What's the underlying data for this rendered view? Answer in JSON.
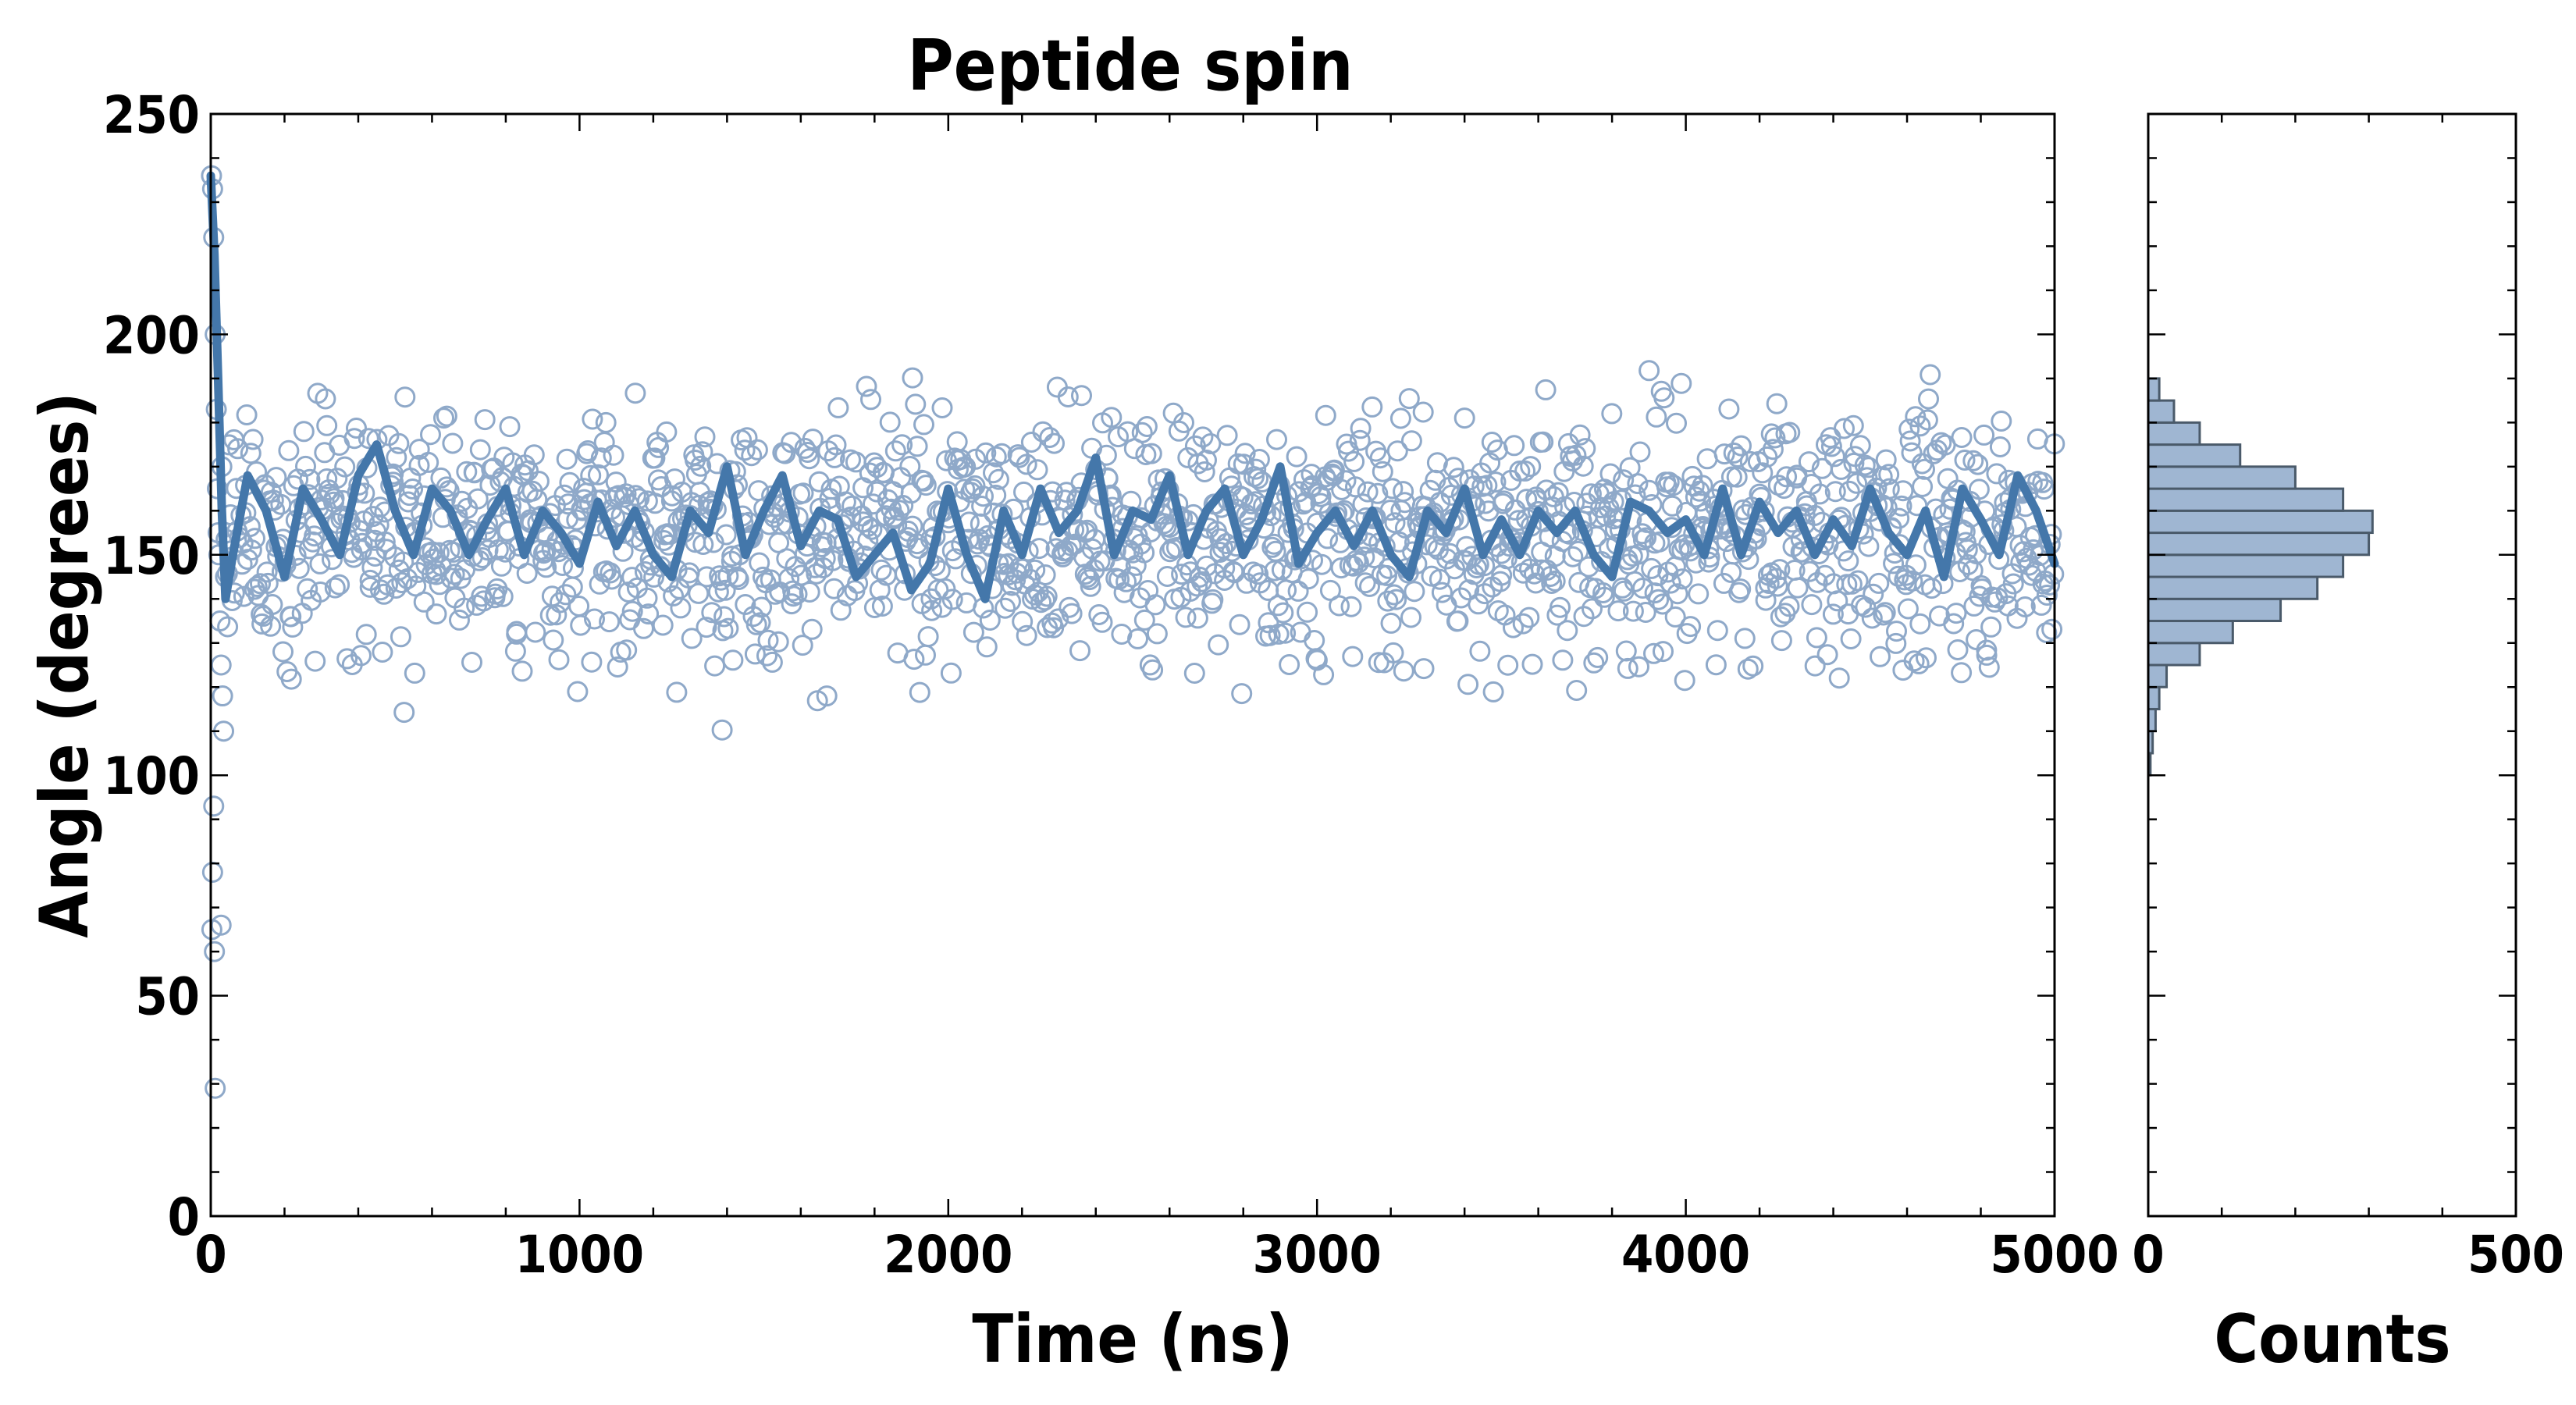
{
  "chart_data": [
    {
      "type": "scatter",
      "title": "Peptide spin",
      "xlabel": "Time (ns)",
      "ylabel": "Angle (degrees)",
      "xlim": [
        0,
        5000
      ],
      "ylim": [
        0,
        250
      ],
      "xticks": [
        "0",
        "1000",
        "2000",
        "3000",
        "4000",
        "5000"
      ],
      "yticks": [
        "0",
        "50",
        "100",
        "150",
        "200",
        "250"
      ],
      "grid": false,
      "series": [
        {
          "style": "hollow-circles",
          "color": "#8fa9c9",
          "description_points": "raw angle samples",
          "early_points": [
            [
              2,
              236
            ],
            [
              5,
              233
            ],
            [
              8,
              222
            ],
            [
              12,
              200
            ],
            [
              15,
              183
            ],
            [
              18,
              165
            ],
            [
              22,
              150
            ],
            [
              25,
              135
            ],
            [
              28,
              125
            ],
            [
              32,
              118
            ],
            [
              35,
              110
            ],
            [
              8,
              93
            ],
            [
              5,
              78
            ],
            [
              3,
              65
            ],
            [
              10,
              60
            ],
            [
              28,
              66
            ],
            [
              12,
              29
            ],
            [
              20,
              155
            ],
            [
              30,
              170
            ],
            [
              40,
              145
            ]
          ],
          "baseline_mean": 155,
          "baseline_spread": 14,
          "time_range": [
            40,
            5000
          ],
          "sample_count": 1600
        },
        {
          "style": "line",
          "color": "#4477aa",
          "values_note": "running average",
          "x": [
            0,
            10,
            20,
            30,
            40,
            60,
            100,
            150,
            200,
            250,
            300,
            350,
            400,
            450,
            500,
            550,
            600,
            650,
            700,
            750,
            800,
            850,
            900,
            950,
            1000,
            1050,
            1100,
            1150,
            1200,
            1250,
            1300,
            1350,
            1400,
            1450,
            1500,
            1550,
            1600,
            1650,
            1700,
            1750,
            1800,
            1850,
            1900,
            1950,
            2000,
            2050,
            2100,
            2150,
            2200,
            2250,
            2300,
            2350,
            2400,
            2450,
            2500,
            2550,
            2600,
            2650,
            2700,
            2750,
            2800,
            2850,
            2900,
            2950,
            3000,
            3050,
            3100,
            3150,
            3200,
            3250,
            3300,
            3350,
            3400,
            3450,
            3500,
            3550,
            3600,
            3650,
            3700,
            3750,
            3800,
            3850,
            3900,
            3950,
            4000,
            4050,
            4100,
            4150,
            4200,
            4250,
            4300,
            4350,
            4400,
            4450,
            4500,
            4550,
            4600,
            4650,
            4700,
            4750,
            4800,
            4850,
            4900,
            4950,
            5000
          ],
          "y": [
            236,
            218,
            190,
            160,
            140,
            150,
            168,
            160,
            145,
            165,
            158,
            150,
            168,
            175,
            160,
            150,
            165,
            160,
            150,
            158,
            165,
            150,
            160,
            155,
            148,
            162,
            152,
            160,
            150,
            145,
            160,
            155,
            170,
            150,
            160,
            168,
            152,
            160,
            158,
            145,
            150,
            155,
            142,
            148,
            165,
            150,
            140,
            160,
            150,
            165,
            155,
            160,
            172,
            150,
            160,
            158,
            168,
            150,
            160,
            165,
            150,
            158,
            170,
            148,
            155,
            160,
            152,
            160,
            150,
            145,
            160,
            155,
            165,
            150,
            158,
            150,
            160,
            155,
            160,
            150,
            145,
            162,
            160,
            155,
            158,
            150,
            165,
            150,
            162,
            155,
            160,
            150,
            158,
            152,
            165,
            155,
            150,
            160,
            145,
            165,
            158,
            150,
            168,
            160,
            148
          ]
        }
      ]
    },
    {
      "type": "bar",
      "orientation": "horizontal",
      "xlabel": "Counts",
      "xlim": [
        0,
        500
      ],
      "xticks": [
        "0",
        "500"
      ],
      "ylim": [
        0,
        250
      ],
      "bin_width": 5,
      "bins": [
        100,
        105,
        110,
        115,
        120,
        125,
        130,
        135,
        140,
        145,
        150,
        155,
        160,
        165,
        170,
        175,
        180,
        185
      ],
      "counts": [
        3,
        6,
        10,
        15,
        25,
        70,
        115,
        180,
        230,
        265,
        300,
        305,
        265,
        200,
        125,
        70,
        35,
        15
      ]
    }
  ]
}
